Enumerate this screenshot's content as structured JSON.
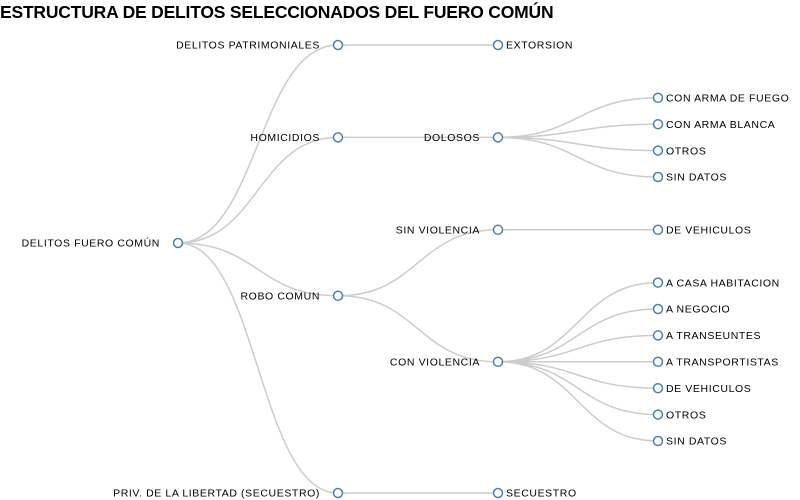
{
  "title": "ESTRUCTURA DE DELITOS SELECCIONADOS DEL FUERO COMÚN",
  "colors": {
    "link": "#cccccc",
    "node_stroke": "#4682b4",
    "node_fill": "#ffffff",
    "text": "#000000"
  },
  "tree": {
    "name": "DELITOS FUERO COMÚN",
    "children": [
      {
        "name": "DELITOS PATRIMONIALES",
        "children": [
          {
            "name": "EXTORSION"
          }
        ]
      },
      {
        "name": "HOMICIDIOS",
        "children": [
          {
            "name": "DOLOSOS",
            "children": [
              {
                "name": "CON ARMA DE FUEGO"
              },
              {
                "name": "CON ARMA BLANCA"
              },
              {
                "name": "OTROS"
              },
              {
                "name": "SIN DATOS"
              }
            ]
          }
        ]
      },
      {
        "name": "ROBO COMUN",
        "children": [
          {
            "name": "SIN VIOLENCIA",
            "children": [
              {
                "name": "DE VEHICULOS"
              }
            ]
          },
          {
            "name": "CON VIOLENCIA",
            "children": [
              {
                "name": "A CASA HABITACION"
              },
              {
                "name": "A NEGOCIO"
              },
              {
                "name": "A TRANSEUNTES"
              },
              {
                "name": "A TRANSPORTISTAS"
              },
              {
                "name": "DE VEHICULOS"
              },
              {
                "name": "OTROS"
              },
              {
                "name": "SIN DATOS"
              }
            ]
          }
        ]
      },
      {
        "name": "PRIV. DE LA LIBERTAD (SECUESTRO)",
        "children": [
          {
            "name": "SECUESTRO"
          }
        ]
      }
    ]
  }
}
